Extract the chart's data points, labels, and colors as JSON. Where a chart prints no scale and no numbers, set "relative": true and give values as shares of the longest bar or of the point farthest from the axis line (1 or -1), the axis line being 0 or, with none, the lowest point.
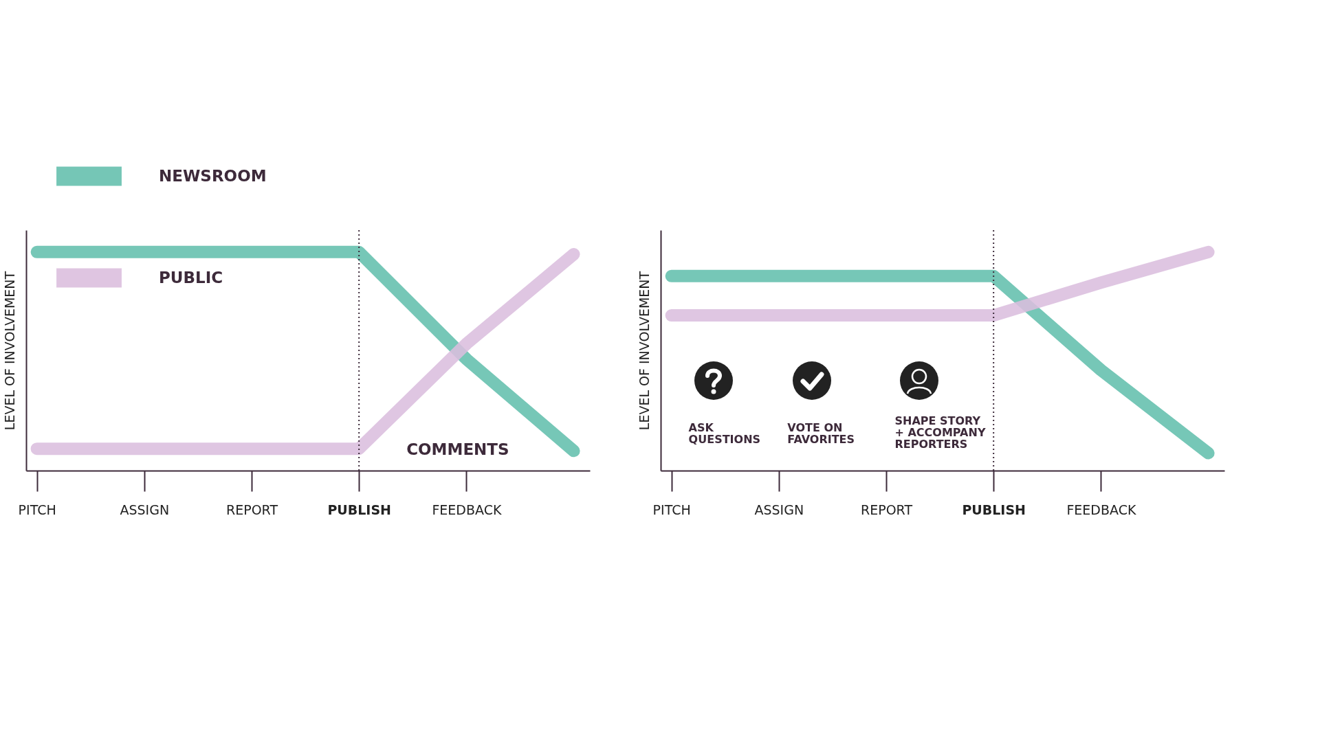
{
  "chart_data": [
    {
      "type": "line",
      "relative": true,
      "ylabel": "LEVEL OF INVOLVEMENT",
      "legend": "top left",
      "categories": [
        "PITCH",
        "ASSIGN",
        "REPORT",
        "PUBLISH",
        "FEEDBACK",
        null
      ],
      "series": [
        {
          "name": "NEWSROOM",
          "color": "#63bfad",
          "values": [
            1,
            1,
            1,
            1,
            0.51,
            0.09
          ]
        },
        {
          "name": "PUBLIC",
          "color": "#dbbede",
          "values": [
            0.1,
            0.1,
            0.1,
            0.1,
            0.58,
            0.99
          ]
        }
      ],
      "ref_lines": [
        {
          "axis": "x",
          "value": "PUBLISH",
          "line_style": "dotted",
          "color": "#3d2a3a"
        }
      ],
      "annotations": [
        "COMMENTS"
      ]
    },
    {
      "type": "line",
      "relative": true,
      "ylabel": "LEVEL OF INVOLVEMENT",
      "categories": [
        "PITCH",
        "ASSIGN",
        "REPORT",
        "PUBLISH",
        "FEEDBACK",
        null
      ],
      "series": [
        {
          "color": "#63bfad",
          "values": [
            0.89,
            0.89,
            0.89,
            0.89,
            0.46,
            0.08
          ]
        },
        {
          "color": "#dbbede",
          "values": [
            0.71,
            0.71,
            0.71,
            0.71,
            0.86,
            1
          ]
        }
      ],
      "ref_lines": [
        {
          "axis": "x",
          "value": "PUBLISH",
          "line_style": "dotted",
          "color": "#3d2a3a"
        }
      ],
      "annotations": [
        "ASK QUESTIONS",
        "VOTE ON FAVORITES",
        "SHAPE STORY + ACCOMPANY REPORTERS"
      ]
    }
  ]
}
